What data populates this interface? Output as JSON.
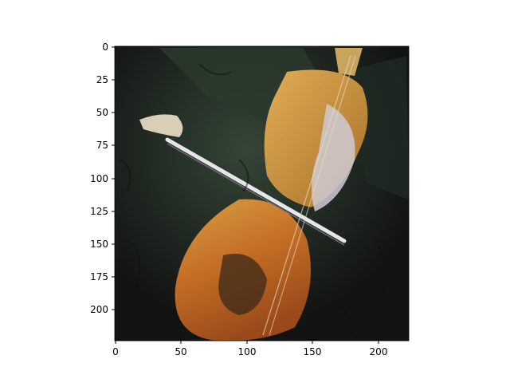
{
  "image": {
    "description_icon": "cello-player-painting-icon",
    "palette": {
      "background": "#151816",
      "dark_green": "#2c3a2e",
      "cello_orange": "#c8762a",
      "cello_gold": "#d8a24a",
      "bow_white": "#e6e6ea",
      "hand_pale": "#d9cfb8"
    }
  },
  "axes": {
    "x_ticks": [
      "0",
      "50",
      "100",
      "150",
      "200"
    ],
    "y_ticks": [
      "0",
      "25",
      "50",
      "75",
      "100",
      "125",
      "150",
      "175",
      "200"
    ],
    "x_range": [
      0,
      224
    ],
    "y_range": [
      0,
      224
    ]
  }
}
